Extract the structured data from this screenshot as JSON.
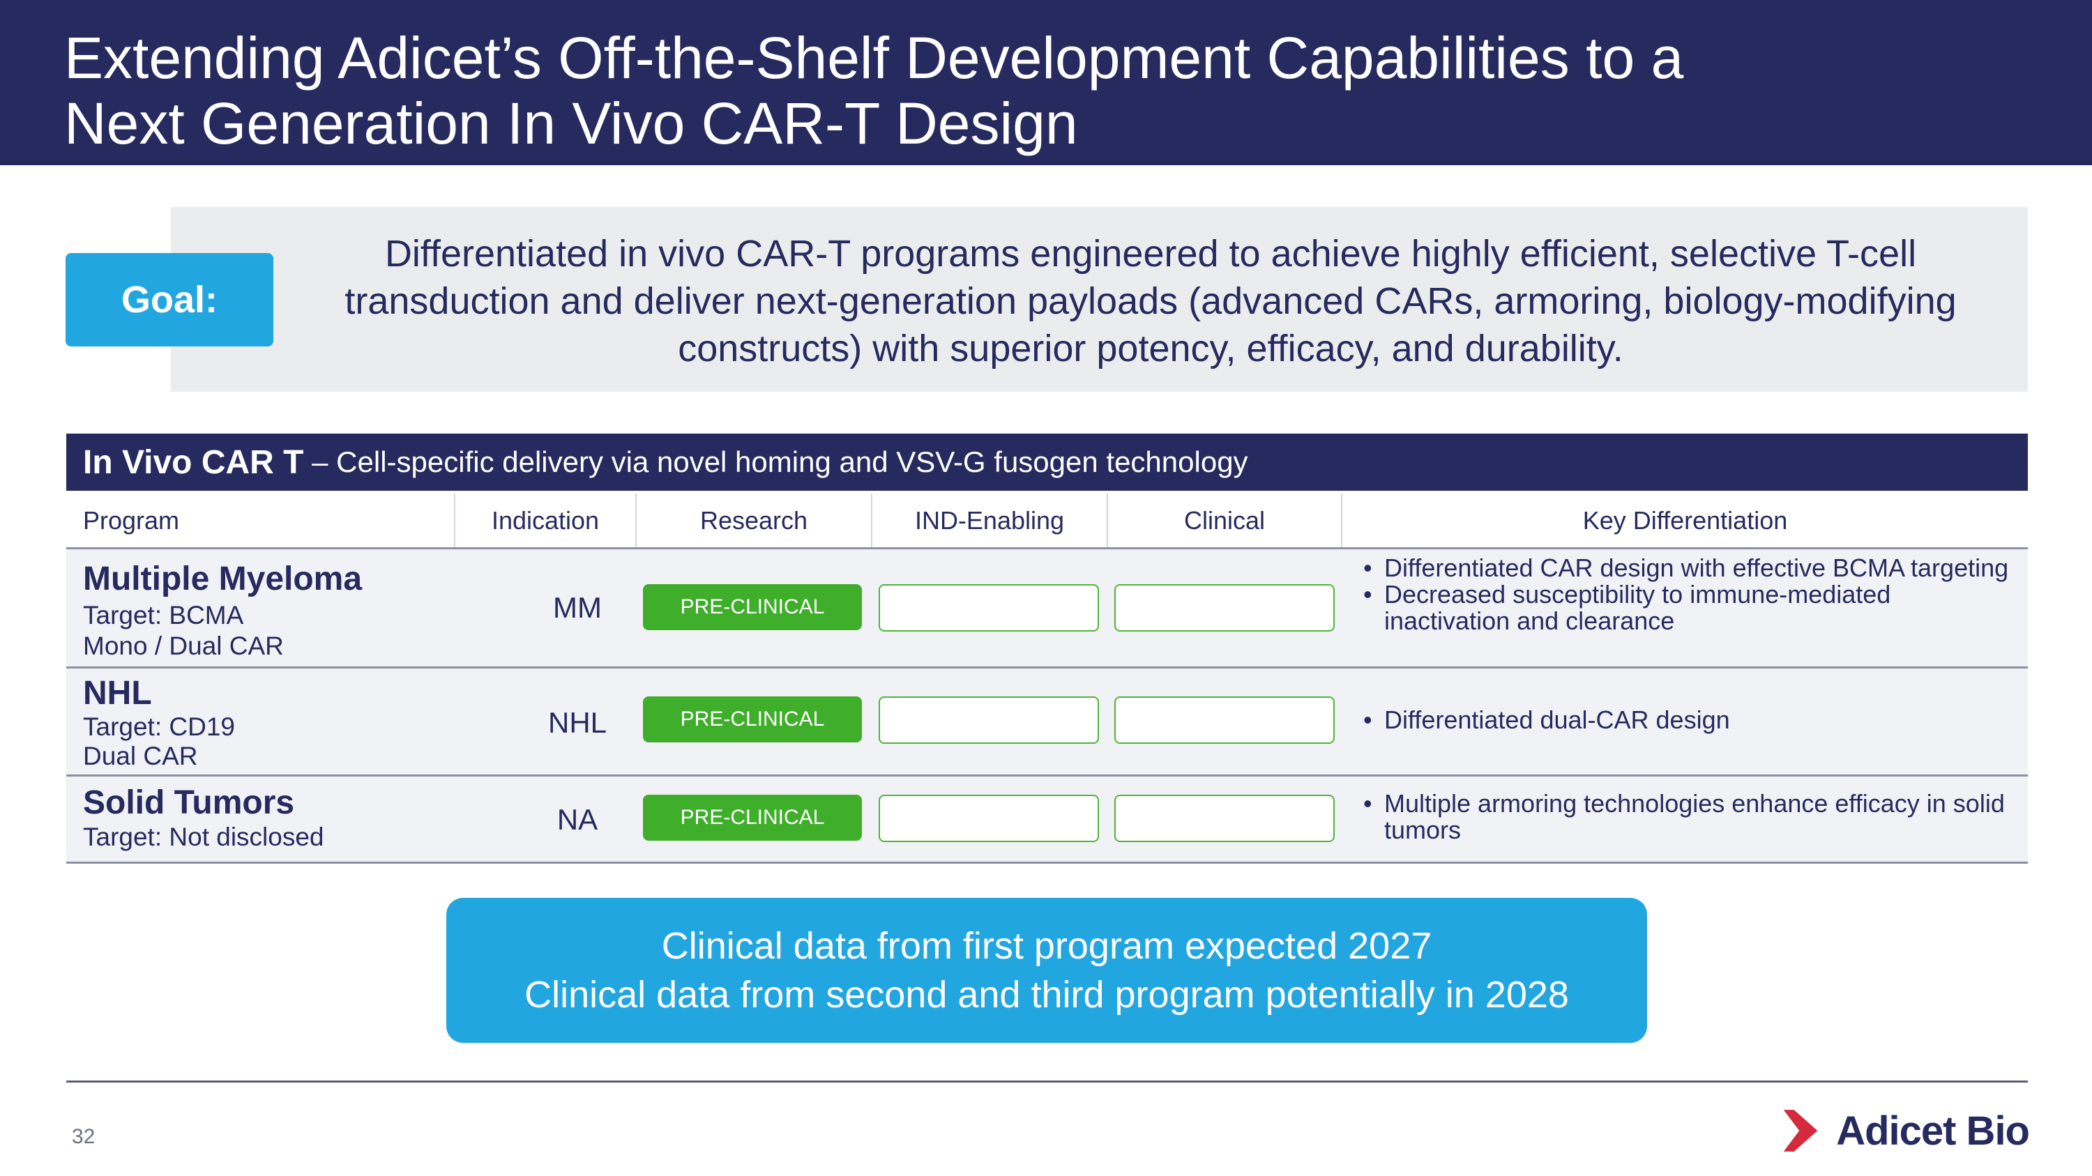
{
  "header": {
    "title_line1": "Extending Adicet’s Off-the-Shelf Development Capabilities to a",
    "title_line2": "Next Generation In Vivo CAR-T Design"
  },
  "goal": {
    "label": "Goal:",
    "line1": "Differentiated in vivo CAR-T programs engineered to achieve highly efficient, selective T-cell",
    "line2": "transduction and deliver next-generation payloads (advanced CARs, armoring, biology-modifying",
    "line3": "constructs) with superior potency, efficacy, and durability."
  },
  "section": {
    "title_bold": "In Vivo CAR T",
    "title_rest": " – Cell-specific delivery via novel homing and VSV-G fusogen technology"
  },
  "table": {
    "columns": {
      "program": "Program",
      "indication": "Indication",
      "research": "Research",
      "ind": "IND-Enabling",
      "clinical": "Clinical",
      "diff": "Key Differentiation"
    },
    "rows": [
      {
        "name": "Multiple Myeloma",
        "sub1": "Target: BCMA",
        "sub2": "Mono / Dual CAR",
        "indication": "MM",
        "stage": "PRE-CLINICAL",
        "diff1": "Differentiated CAR design with effective BCMA targeting",
        "diff2": "Decreased susceptibility to immune-mediated inactivation and clearance"
      },
      {
        "name": "NHL",
        "sub1": "Target: CD19",
        "sub2": "Dual CAR",
        "indication": "NHL",
        "stage": "PRE-CLINICAL",
        "diff1": "Differentiated dual-CAR design"
      },
      {
        "name": "Solid Tumors",
        "sub1": "Target: Not disclosed",
        "indication": "NA",
        "stage": "PRE-CLINICAL",
        "diff1": "Multiple armoring technologies enhance efficacy in solid tumors"
      }
    ]
  },
  "callout": {
    "line1": "Clinical data from first program expected 2027",
    "line2": "Clinical data from second and third program potentially in 2028"
  },
  "footer": {
    "page_number": "32",
    "logo_text": "Adicet Bio"
  },
  "colors": {
    "navy": "#272a5e",
    "cyan": "#22a6e0",
    "green": "#3fae2a",
    "logo_red": "#d42a3c"
  }
}
